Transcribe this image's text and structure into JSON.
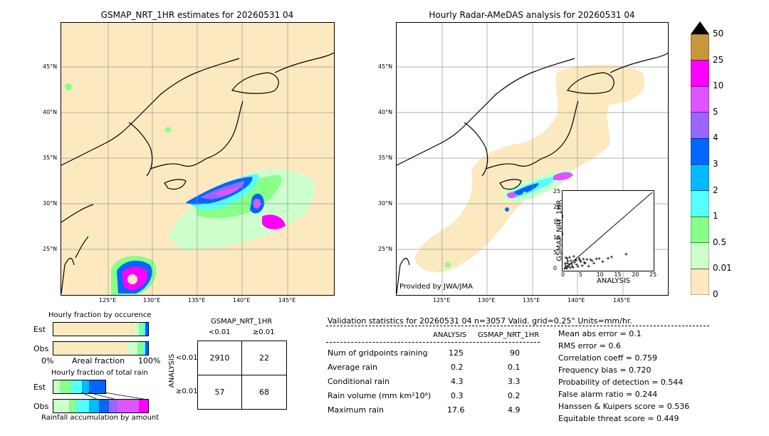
{
  "left_map": {
    "title": "GSMAP_NRT_1HR estimates for 20260531 04",
    "lat_labels": [
      "45°N",
      "40°N",
      "35°N",
      "30°N",
      "25°N"
    ],
    "lon_labels": [
      "125°E",
      "130°E",
      "135°E",
      "140°E",
      "145°E"
    ]
  },
  "right_map": {
    "title": "Hourly Radar-AMeDAS analysis for 20260531 04",
    "lat_labels": [
      "45°N",
      "40°N",
      "35°N",
      "30°N",
      "25°N"
    ],
    "lon_labels": [
      "125°E",
      "130°E",
      "135°E",
      "140°E",
      "145°E"
    ],
    "provided_by": "Provided by JWA/JMA"
  },
  "colorbar": {
    "ticks": [
      "50",
      "25",
      "10",
      "5",
      "4",
      "3",
      "2",
      "1",
      "0.5",
      "0.01",
      "0"
    ],
    "colors": [
      "#c8963c",
      "#ff00ff",
      "#dd55ff",
      "#9966ff",
      "#0066ff",
      "#00bbff",
      "#55ffff",
      "#88ff88",
      "#ccffcc",
      "#fde9bf"
    ],
    "extend_color": "#000000"
  },
  "occurrence": {
    "title": "Hourly fraction by occurence",
    "row_est": "Est",
    "row_obs": "Obs",
    "axis_left": "0%",
    "axis_mid": "Areal fraction",
    "axis_right": "100%"
  },
  "total_rain": {
    "title": "Hourly fraction of total rain",
    "row_est": "Est",
    "row_obs": "Obs",
    "axis_mid": "Rainfall accumulation by amount"
  },
  "contingency": {
    "header": "GSMAP_NRT_1HR",
    "col1": "<0.01",
    "col2": "≥0.01",
    "side_label": "ANALYSIS",
    "row1": "<0.01",
    "row2": "≥0.01",
    "c11": "2910",
    "c12": "22",
    "c21": "57",
    "c22": "68"
  },
  "validation": {
    "title": "Validation statistics for 20260531 04  n=3057 Valid. grid=0.25° Units=mm/hr.",
    "col_analysis": "ANALYSIS",
    "col_gsmap": "GSMAP_NRT_1HR",
    "rows": [
      {
        "label": "Num of gridpoints raining",
        "a": "125",
        "g": "90"
      },
      {
        "label": "Average rain",
        "a": "0.2",
        "g": "0.1"
      },
      {
        "label": "Conditional rain",
        "a": "4.3",
        "g": "3.3"
      },
      {
        "label": "Rain volume (mm km²10⁶)",
        "a": "0.3",
        "g": "0.2"
      },
      {
        "label": "Maximum rain",
        "a": "17.6",
        "g": "4.9"
      }
    ],
    "scores": [
      "Mean abs error =    0.1",
      "RMS error =    0.6",
      "Correlation coeff =  0.759",
      "Frequency bias =  0.720",
      "Probability of detection =  0.544",
      "False alarm ratio =  0.244",
      "Hanssen & Kuipers score =  0.536",
      "Equitable threat score =  0.449"
    ]
  },
  "chart_data": {
    "type": "scatter",
    "title": "",
    "xlabel": "ANALYSIS",
    "ylabel": "GSMAP_NRT_1HR",
    "xlim": [
      0,
      25
    ],
    "ylim": [
      0,
      25
    ],
    "x_ticks": [
      "0",
      "5",
      "10",
      "15",
      "20",
      "25"
    ],
    "y_ticks": [
      "0",
      "5",
      "10",
      "15",
      "20",
      "25"
    ],
    "x": [
      0.3,
      0.5,
      0.8,
      1.0,
      1.2,
      1.5,
      1.8,
      2.0,
      2.3,
      2.6,
      3.0,
      3.3,
      3.6,
      4.0,
      4.3,
      4.8,
      5.2,
      5.5,
      6.0,
      6.5,
      7.0,
      7.5,
      8.0,
      8.5,
      9.2,
      10.0,
      11.0,
      12.5,
      13.5,
      17.6,
      0.6,
      1.1,
      1.6,
      2.2,
      2.8,
      3.4,
      4.5,
      5.8,
      0.4,
      0.9
    ],
    "y": [
      0.4,
      1.2,
      0.3,
      2.0,
      0.8,
      1.5,
      0.5,
      2.8,
      1.0,
      0.6,
      2.2,
      3.0,
      1.5,
      0.9,
      3.5,
      2.5,
      1.2,
      3.3,
      2.0,
      3.2,
      1.0,
      3.1,
      2.8,
      2.0,
      3.4,
      3.5,
      2.5,
      3.6,
      4.0,
      4.9,
      3.8,
      2.6,
      3.9,
      1.8,
      4.2,
      2.9,
      3.0,
      2.2,
      1.9,
      3.4
    ]
  }
}
